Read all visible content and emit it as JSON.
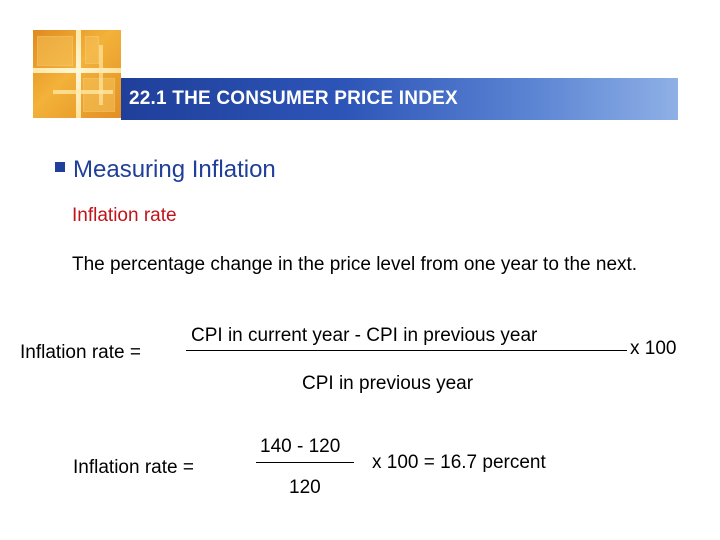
{
  "slide": {
    "title": "22.1 THE CONSUMER PRICE INDEX",
    "bullet": {
      "icon": "square-bullet-icon",
      "text": "Measuring Inflation"
    },
    "sub_heading": "Inflation rate",
    "definition": "The percentage change in the price level from one year to the next.",
    "formula": {
      "label": "Inflation rate =",
      "numerator": "CPI in current year - CPI in previous year",
      "multiplier": "x 100",
      "denominator": "CPI in previous year"
    },
    "example": {
      "label": "Inflation rate =",
      "numerator": "140 - 120",
      "result": "x 100 = 16.7 percent",
      "denominator": "120"
    }
  },
  "colors": {
    "title_bar_start": "#1f3f9a",
    "title_bar_end": "#8fb0e6",
    "bullet_text": "#1f3f9a",
    "sub_heading": "#c0141a",
    "logo": "#f3b23a"
  }
}
